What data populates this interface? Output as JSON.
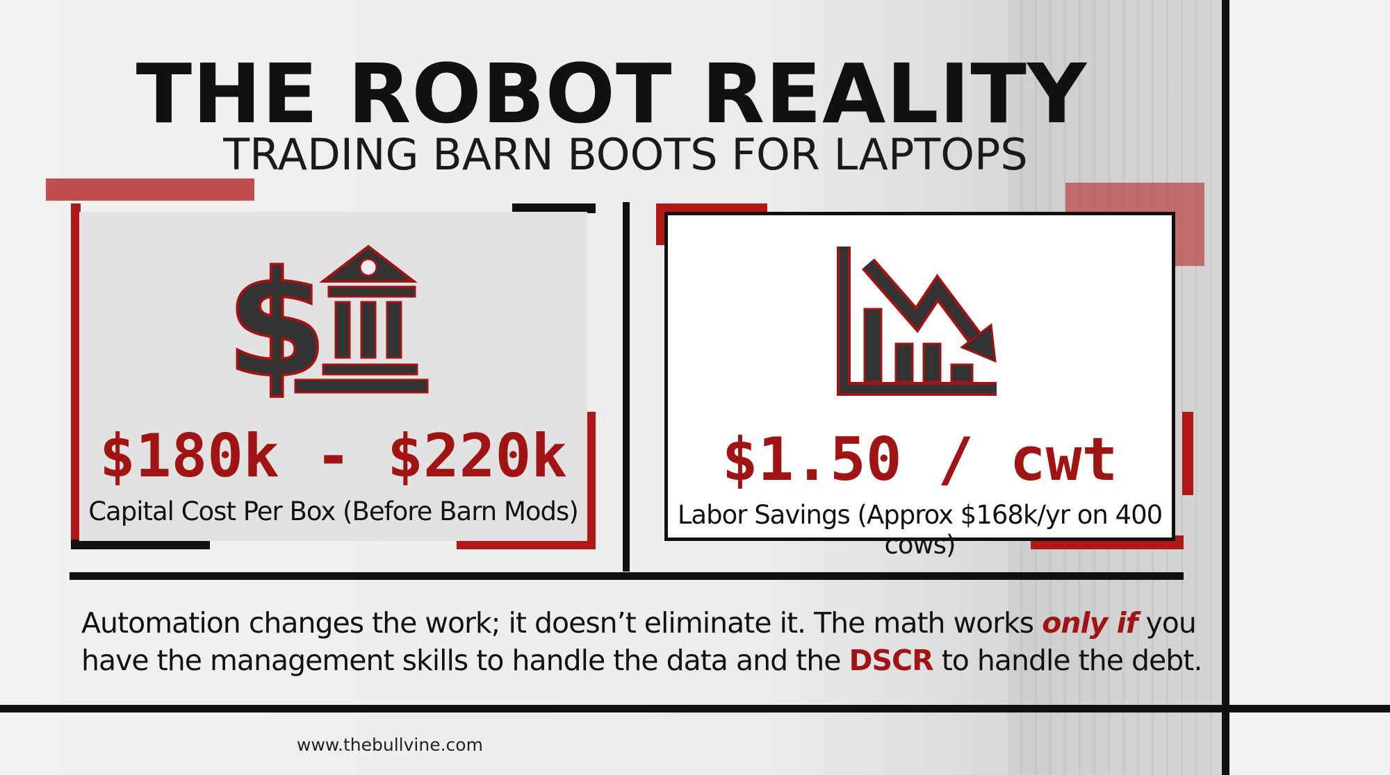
{
  "title": "THE ROBOT REALITY",
  "subtitle": "TRADING BARN BOOTS FOR LAPTOPS",
  "cards": [
    {
      "icon": "dollar-bank-icon",
      "value": "$180k - $220k",
      "label": "Capital Cost Per Box (Before Barn Mods)"
    },
    {
      "icon": "declining-chart-icon",
      "value": "$1.50 / cwt",
      "label": "Labor Savings (Approx $168k/yr on 400 cows)"
    }
  ],
  "body": {
    "part1": "Automation changes the work; it doesn’t eliminate it. The math works ",
    "emphasis": "only if",
    "part2": " you have the management skills to handle the data and the ",
    "strong": "DSCR",
    "part3": " to handle the debt."
  },
  "footer": {
    "url": "www.thebullvine.com"
  },
  "colors": {
    "accent": "#a01414",
    "frame": "#111111"
  }
}
